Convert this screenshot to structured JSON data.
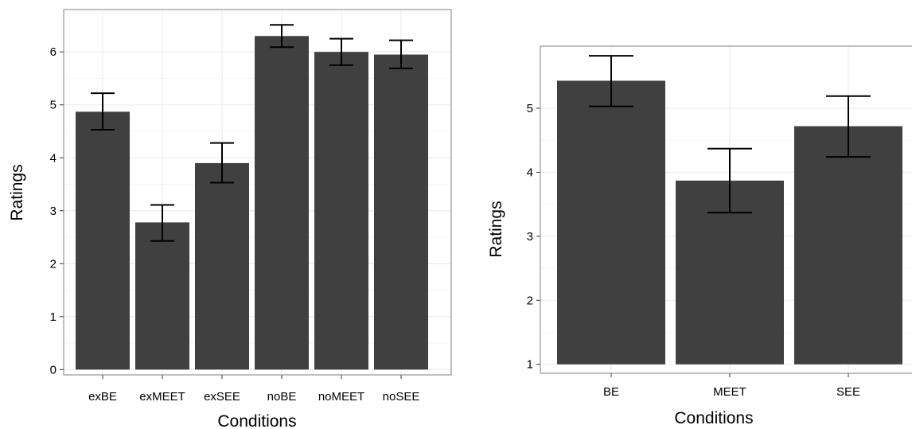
{
  "chart_data": [
    {
      "type": "bar",
      "xlabel": "Conditions",
      "ylabel": "Ratings",
      "categories": [
        "exBE",
        "exMEET",
        "exSEE",
        "noBE",
        "noMEET",
        "noSEE"
      ],
      "values": [
        4.87,
        2.78,
        3.9,
        6.3,
        6.0,
        5.95
      ],
      "error_low": [
        4.53,
        2.43,
        3.53,
        6.09,
        5.75,
        5.69
      ],
      "error_high": [
        5.22,
        3.11,
        4.28,
        6.51,
        6.25,
        6.22
      ],
      "baseline": 0,
      "ylim": [
        -0.1,
        6.8
      ],
      "yticks": [
        0,
        1,
        2,
        3,
        4,
        5,
        6
      ],
      "grid": true
    },
    {
      "type": "bar",
      "xlabel": "Conditions",
      "ylabel": "Ratings",
      "categories": [
        "BE",
        "MEET",
        "SEE"
      ],
      "values": [
        5.43,
        3.87,
        4.72
      ],
      "error_low": [
        5.03,
        3.37,
        4.24
      ],
      "error_high": [
        5.82,
        4.37,
        5.19
      ],
      "baseline": 1,
      "ylim": [
        0.86,
        5.97
      ],
      "yticks": [
        1,
        2,
        3,
        4,
        5
      ],
      "grid": true
    }
  ]
}
